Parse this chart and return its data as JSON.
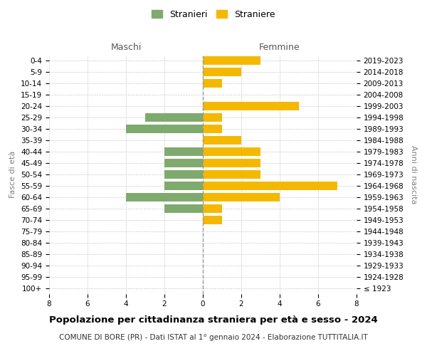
{
  "age_groups": [
    "0-4",
    "5-9",
    "10-14",
    "15-19",
    "20-24",
    "25-29",
    "30-34",
    "35-39",
    "40-44",
    "45-49",
    "50-54",
    "55-59",
    "60-64",
    "65-69",
    "70-74",
    "75-79",
    "80-84",
    "85-89",
    "90-94",
    "95-99",
    "100+"
  ],
  "birth_years": [
    "2019-2023",
    "2014-2018",
    "2009-2013",
    "2004-2008",
    "1999-2003",
    "1994-1998",
    "1989-1993",
    "1984-1988",
    "1979-1983",
    "1974-1978",
    "1969-1973",
    "1964-1968",
    "1959-1963",
    "1954-1958",
    "1949-1953",
    "1944-1948",
    "1939-1943",
    "1934-1938",
    "1929-1933",
    "1924-1928",
    "≤ 1923"
  ],
  "maschi": [
    0,
    0,
    0,
    0,
    0,
    3,
    4,
    0,
    2,
    2,
    2,
    2,
    4,
    2,
    0,
    0,
    0,
    0,
    0,
    0,
    0
  ],
  "femmine": [
    3,
    2,
    1,
    0,
    5,
    1,
    1,
    2,
    3,
    3,
    3,
    7,
    4,
    1,
    1,
    0,
    0,
    0,
    0,
    0,
    0
  ],
  "color_maschi": "#7faa6e",
  "color_femmine": "#f5b800",
  "xlim": 8,
  "xlabel_left": "Maschi",
  "xlabel_right": "Femmine",
  "ylabel_left": "Fasce di età",
  "ylabel_right": "Anni di nascita",
  "legend_maschi": "Stranieri",
  "legend_femmine": "Straniere",
  "title": "Popolazione per cittadinanza straniera per età e sesso - 2024",
  "subtitle": "COMUNE DI BORE (PR) - Dati ISTAT al 1° gennaio 2024 - Elaborazione TUTTITALIA.IT",
  "bg_color": "#ffffff",
  "grid_color": "#cccccc",
  "bar_height": 0.75
}
